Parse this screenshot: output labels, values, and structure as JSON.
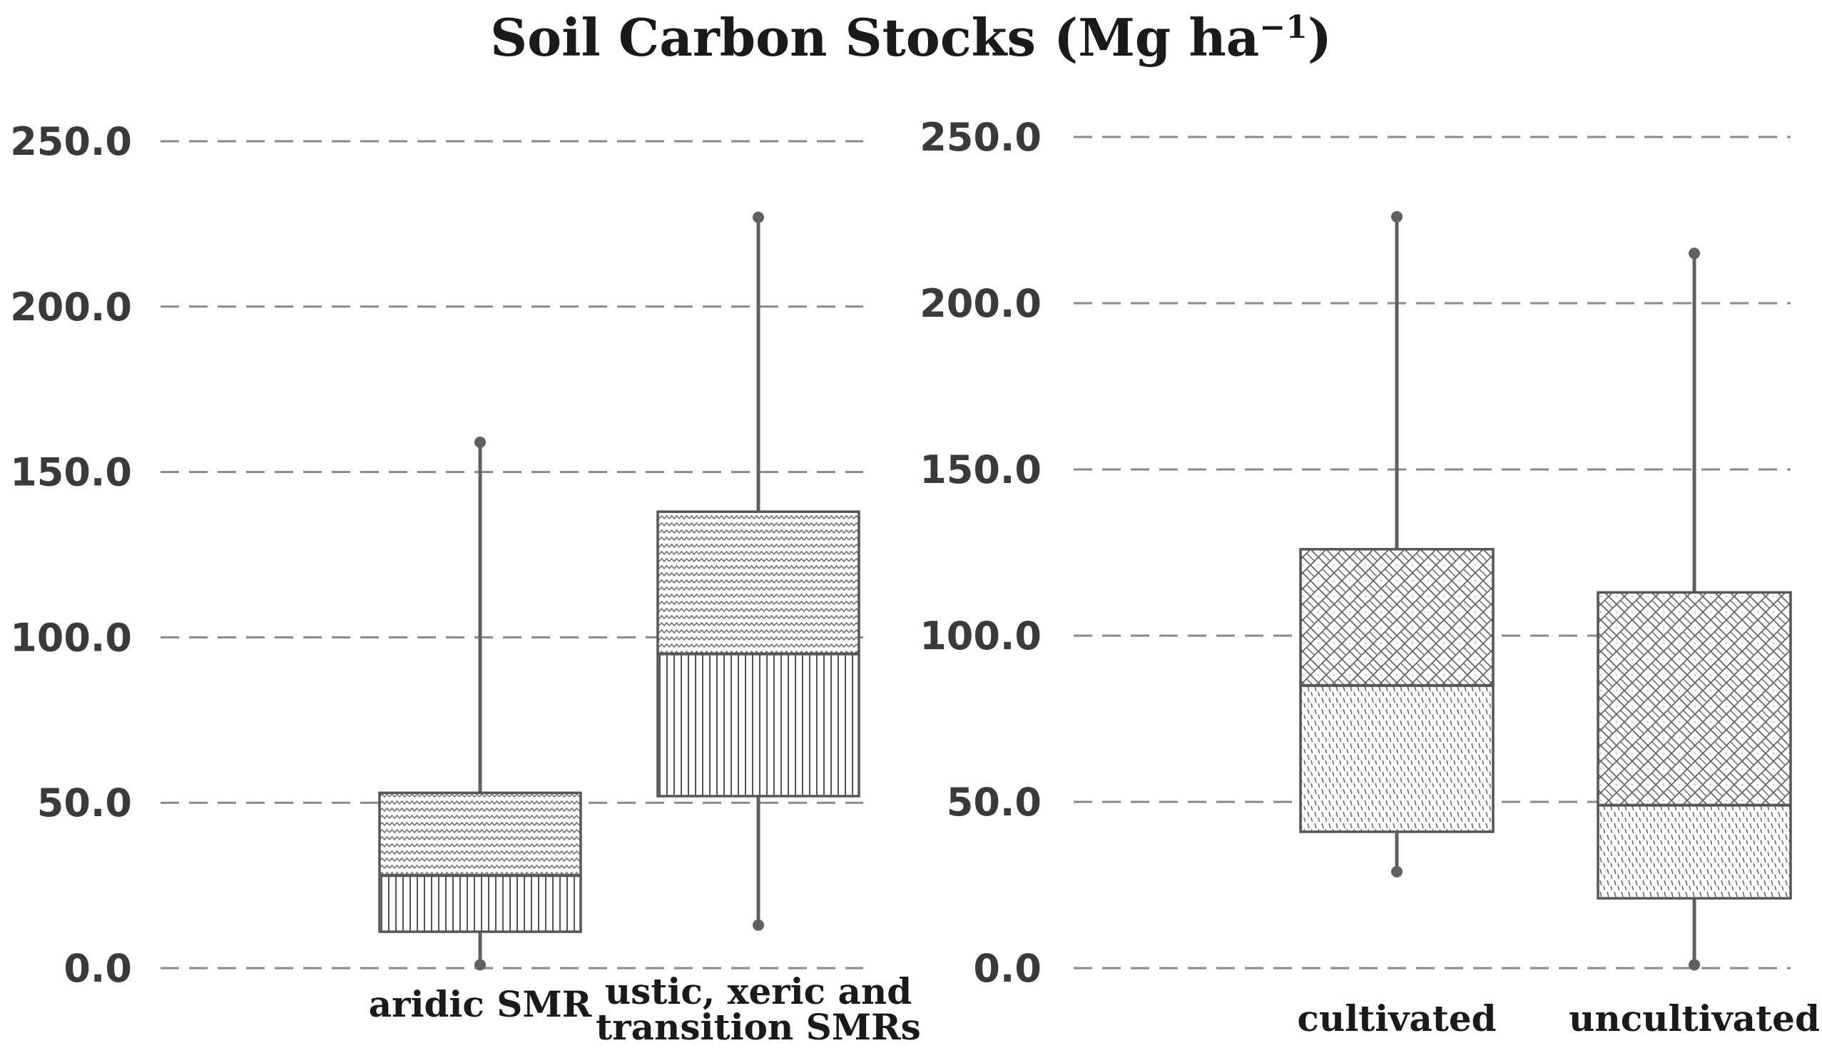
{
  "title": {
    "text": "Soil Carbon Stocks (Mg ha",
    "superscript": "−1",
    "suffix": ")"
  },
  "chart_data": [
    {
      "type": "boxplot",
      "title": "Soil Carbon Stocks (Mg ha−1)",
      "ylim": [
        0,
        250
      ],
      "yticks": [
        "0.0",
        "50.0",
        "100.0",
        "150.0",
        "200.0",
        "250.0"
      ],
      "grid": true,
      "categories": [
        {
          "label_lines": [
            "aridic SMR"
          ],
          "min": 1,
          "q1": 11,
          "median": 28,
          "q3": 53,
          "max": 159,
          "patterns": {
            "upper": "wave",
            "lower": "vertical"
          }
        },
        {
          "label_lines": [
            "ustic, xeric and",
            "transition SMRs"
          ],
          "min": 13,
          "q1": 52,
          "median": 95,
          "q3": 138,
          "max": 227,
          "patterns": {
            "upper": "wave",
            "lower": "vertical"
          }
        }
      ]
    },
    {
      "type": "boxplot",
      "title": "Soil Carbon Stocks (Mg ha−1)",
      "ylim": [
        0,
        250
      ],
      "yticks": [
        "0.0",
        "50.0",
        "100.0",
        "150.0",
        "200.0",
        "250.0"
      ],
      "grid": true,
      "categories": [
        {
          "label_lines": [
            "cultivated"
          ],
          "min": 29,
          "q1": 41,
          "median": 85,
          "q3": 126,
          "max": 226,
          "patterns": {
            "upper": "brick",
            "lower": "dash"
          }
        },
        {
          "label_lines": [
            "uncultivated"
          ],
          "min": 1,
          "q1": 21,
          "median": 49,
          "q3": 113,
          "max": 215,
          "patterns": {
            "upper": "brick",
            "lower": "dash"
          }
        }
      ]
    }
  ]
}
